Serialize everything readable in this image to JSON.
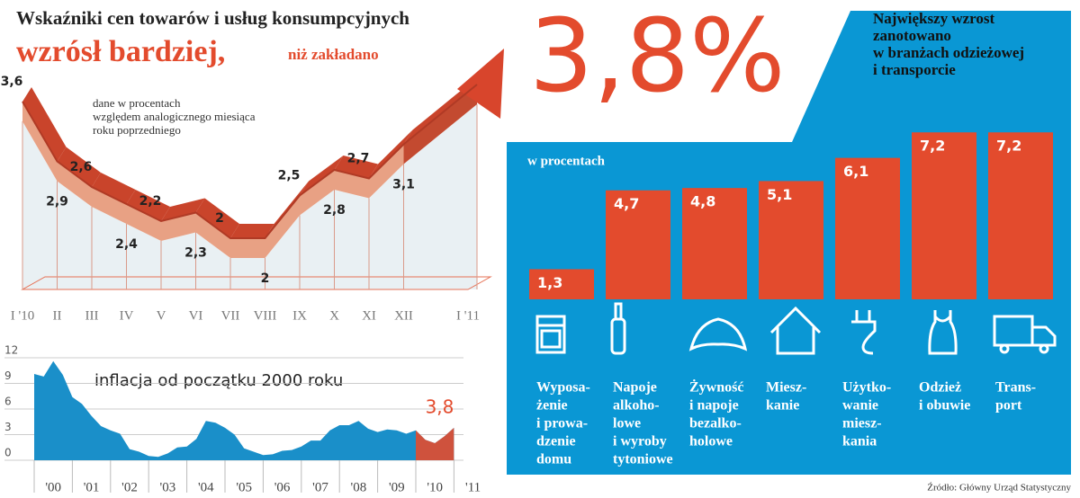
{
  "chart_data": [
    {
      "type": "ribbon",
      "title": "Wskaźniki cen towarów i usług konsumpcyjnych",
      "subtitle": [
        "wzrósł bardziej,",
        "niż zakładano"
      ],
      "note": [
        "dane w procentach",
        "względem analogicznego miesiąca",
        "roku poprzedniego"
      ],
      "categories": [
        "I '10",
        "II",
        "III",
        "IV",
        "V",
        "VI",
        "VII",
        "VIII",
        "IX",
        "X",
        "XI",
        "XII",
        "I '11"
      ],
      "values": [
        3.6,
        2.9,
        2.6,
        2.4,
        2.2,
        2.3,
        2,
        2,
        2.5,
        2.8,
        2.7,
        3.1,
        3.8
      ],
      "value_labels": [
        "3,6",
        "2,9",
        "2,6",
        "2,4",
        "2,2",
        "2,3",
        "2",
        "2",
        "2,5",
        "2,8",
        "2,7",
        "3,1",
        "3,8%"
      ],
      "color": "#d8452c"
    },
    {
      "type": "bar",
      "title": [
        "Największy wzrost",
        "zanotowano",
        "w branżach odzieżowej",
        "i transporcie"
      ],
      "subtitle": "w procentach",
      "categories": [
        [
          "Wyposa-",
          "żenie",
          "i prowa-",
          "dzenie",
          "domu"
        ],
        [
          "Napoje",
          "alkoho-",
          "lowe",
          "i wyroby",
          "tytoniowe"
        ],
        [
          "Żywność",
          "i napoje",
          "bezalko-",
          "holowe"
        ],
        [
          "Miesz-",
          "kanie"
        ],
        [
          "Użytko-",
          "wanie",
          "miesz-",
          "kania"
        ],
        [
          "Odzież",
          "i obuwie"
        ],
        [
          "Trans-",
          "port"
        ]
      ],
      "values": [
        1.3,
        4.7,
        4.8,
        5.1,
        6.1,
        7.2,
        7.2
      ],
      "value_labels": [
        "1,3",
        "4,7",
        "4,8",
        "5,1",
        "6,1",
        "7,2",
        "7,2"
      ],
      "color": "#e34b2d",
      "source": "Źródło: Główny Urząd Statystyczny"
    },
    {
      "type": "area",
      "title": "inflacja od początku 2000 roku",
      "x": [
        2000,
        2000.25,
        2000.5,
        2000.75,
        2001,
        2001.25,
        2001.5,
        2001.75,
        2002,
        2002.25,
        2002.5,
        2002.75,
        2003,
        2003.25,
        2003.5,
        2003.75,
        2004,
        2004.25,
        2004.5,
        2004.75,
        2005,
        2005.25,
        2005.5,
        2005.75,
        2006,
        2006.25,
        2006.5,
        2006.75,
        2007,
        2007.25,
        2007.5,
        2007.75,
        2008,
        2008.25,
        2008.5,
        2008.75,
        2009,
        2009.25,
        2009.5,
        2009.75,
        2010,
        2010.25,
        2010.5,
        2010.75,
        2011
      ],
      "values": [
        10.1,
        9.8,
        11.6,
        10,
        7.4,
        6.6,
        5.2,
        4,
        3.5,
        3.1,
        1.3,
        1,
        0.5,
        0.4,
        0.8,
        1.5,
        1.6,
        2.5,
        4.6,
        4.4,
        3.8,
        3,
        1.4,
        1,
        0.6,
        0.7,
        1.1,
        1.2,
        1.6,
        2.3,
        2.3,
        3.5,
        4.1,
        4.1,
        4.6,
        3.7,
        3.3,
        3.6,
        3.5,
        3.1,
        3.5,
        2.4,
        2,
        2.8,
        3.8
      ],
      "end_label": "3,8",
      "color": "#1a8fc9",
      "highlight": {
        "from": 2010,
        "color": "#e34b2d"
      },
      "xlim": [
        2000,
        2011.25
      ],
      "xticks": [
        {
          "value": 2000,
          "label": "'00"
        },
        {
          "value": 2001,
          "label": "'01"
        },
        {
          "value": 2002,
          "label": "'02"
        },
        {
          "value": 2003,
          "label": "'03"
        },
        {
          "value": 2004,
          "label": "'04"
        },
        {
          "value": 2005,
          "label": "'05"
        },
        {
          "value": 2006,
          "label": "'06"
        },
        {
          "value": 2007,
          "label": "'07"
        },
        {
          "value": 2008,
          "label": "'08"
        },
        {
          "value": 2009,
          "label": "'09"
        },
        {
          "value": 2010,
          "label": "'10"
        },
        {
          "value": 2011,
          "label": "'11"
        }
      ],
      "ylim": [
        0,
        12
      ],
      "yticks": [
        0,
        3,
        6,
        9,
        12
      ],
      "grid": true
    }
  ]
}
